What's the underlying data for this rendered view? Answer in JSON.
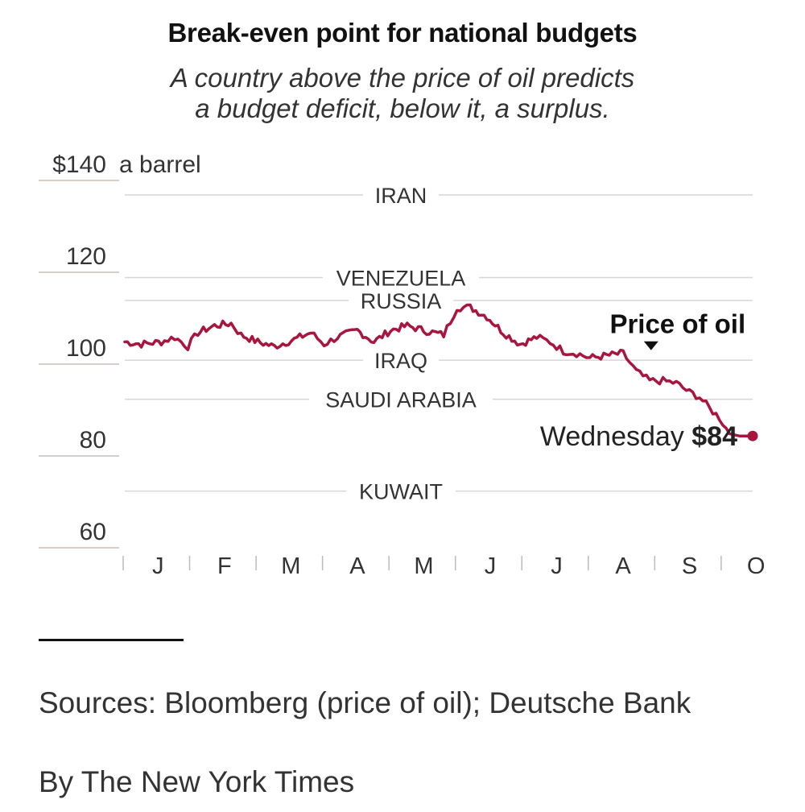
{
  "title": "Break-even point for national budgets",
  "subtitle_line1": "A country above the price of oil predicts",
  "subtitle_line2": "a budget deficit, below it, a surplus.",
  "sources": "Sources: Bloomberg (price of oil); Deutsche Bank",
  "byline": "By The New York Times",
  "chart_data": {
    "type": "line",
    "title": "Break-even point for national budgets",
    "ylabel": "a barrel",
    "ylim": [
      60,
      140
    ],
    "y_ticks": [
      {
        "value": 140,
        "label": "$140"
      },
      {
        "value": 120,
        "label": "120"
      },
      {
        "value": 100,
        "label": "100"
      },
      {
        "value": 80,
        "label": "80"
      },
      {
        "value": 60,
        "label": "60"
      }
    ],
    "y_unit_label": "a barrel",
    "x_ticks": [
      "J",
      "F",
      "M",
      "A",
      "M",
      "J",
      "J",
      "A",
      "S",
      "O"
    ],
    "x_range": [
      0,
      9.45
    ],
    "breakeven_lines": [
      {
        "country": "IRAN",
        "value": 136.5
      },
      {
        "country": "VENEZUELA",
        "value": 118.5
      },
      {
        "country": "RUSSIA",
        "value": 113.5
      },
      {
        "country": "IRAQ",
        "value": 100.5
      },
      {
        "country": "SAUDI ARABIA",
        "value": 92
      },
      {
        "country": "KUWAIT",
        "value": 72
      }
    ],
    "series": [
      {
        "name": "Price of oil",
        "color": "#a8153e",
        "x": [
          0,
          0.25,
          0.55,
          0.75,
          0.95,
          1.1,
          1.35,
          1.6,
          1.75,
          2.0,
          2.25,
          2.55,
          2.8,
          3.0,
          3.2,
          3.5,
          3.75,
          4.0,
          4.25,
          4.5,
          4.8,
          5.0,
          5.2,
          5.45,
          5.7,
          5.95,
          6.2,
          6.4,
          6.6,
          6.8,
          7.0,
          7.25,
          7.5,
          7.7,
          7.9,
          8.1,
          8.3,
          8.5,
          8.65,
          8.8,
          8.95,
          9.1,
          9.25,
          9.35,
          9.45
        ],
        "values": [
          104.5,
          104,
          104.5,
          105.5,
          103.5,
          106.5,
          108,
          108.5,
          106,
          104.5,
          103.5,
          105,
          106.5,
          104,
          105.5,
          107,
          104.5,
          107,
          108,
          107,
          106,
          112,
          112,
          110,
          106.5,
          104,
          105.5,
          104.5,
          102.5,
          102,
          101,
          101.5,
          102,
          98,
          96,
          96,
          95.5,
          93.5,
          92.5,
          90,
          88,
          84.5,
          84,
          84,
          84
        ]
      }
    ],
    "annotations": [
      {
        "text": "Price of oil",
        "at_x": 7.8
      },
      {
        "text_prefix": "Wednesday",
        "text_value": "$84"
      }
    ]
  }
}
